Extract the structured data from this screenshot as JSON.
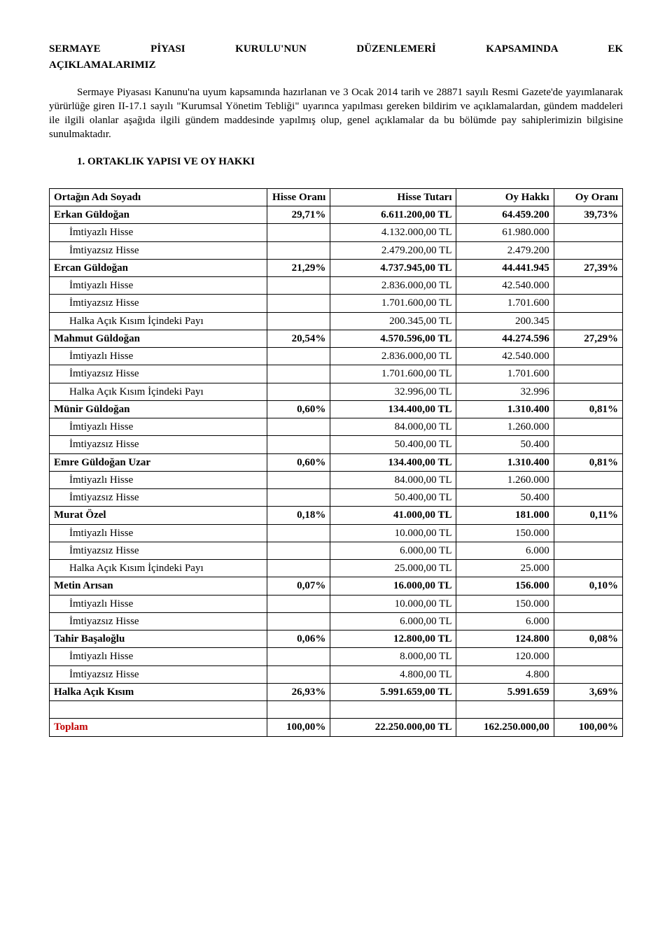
{
  "title_line1": "SERMAYE PİYASI KURULU'NUN DÜZENLEMERİ KAPSAMINDA EK",
  "title_line2": "AÇIKLAMALARIMIZ",
  "paragraph": "Sermaye Piyasası Kanunu'na uyum kapsamında hazırlanan ve 3 Ocak 2014 tarih ve 28871 sayılı Resmi Gazete'de yayımlanarak yürürlüğe giren II-17.1 sayılı \"Kurumsal Yönetim Tebliği\" uyarınca yapılması gereken bildirim ve açıklamalardan, gündem maddeleri ile ilgili olanlar aşağıda ilgili gündem maddesinde yapılmış olup, genel açıklamalar da bu bölümde pay sahiplerimizin bilgisine sunulmaktadır.",
  "section_heading": "1. ORTAKLIK YAPISI VE OY HAKKI",
  "columns": {
    "name": "Ortağın Adı Soyadı",
    "pct": "Hisse Oranı",
    "amt": "Hisse Tutarı",
    "hak": "Oy Hakkı",
    "oy": "Oy Oranı"
  },
  "rows": [
    {
      "type": "main",
      "name": "Erkan Güldoğan",
      "pct": "29,71%",
      "amt": "6.611.200,00 TL",
      "hak": "64.459.200",
      "oy": "39,73%"
    },
    {
      "type": "sub",
      "name": "İmtiyazlı Hisse",
      "pct": "",
      "amt": "4.132.000,00 TL",
      "hak": "61.980.000",
      "oy": ""
    },
    {
      "type": "sub",
      "name": "İmtiyazsız Hisse",
      "pct": "",
      "amt": "2.479.200,00 TL",
      "hak": "2.479.200",
      "oy": ""
    },
    {
      "type": "main",
      "name": "Ercan Güldoğan",
      "pct": "21,29%",
      "amt": "4.737.945,00 TL",
      "hak": "44.441.945",
      "oy": "27,39%"
    },
    {
      "type": "sub",
      "name": "İmtiyazlı Hisse",
      "pct": "",
      "amt": "2.836.000,00 TL",
      "hak": "42.540.000",
      "oy": ""
    },
    {
      "type": "sub",
      "name": "İmtiyazsız Hisse",
      "pct": "",
      "amt": "1.701.600,00 TL",
      "hak": "1.701.600",
      "oy": ""
    },
    {
      "type": "sub",
      "name": "Halka Açık Kısım İçindeki Payı",
      "pct": "",
      "amt": "200.345,00 TL",
      "hak": "200.345",
      "oy": ""
    },
    {
      "type": "main",
      "name": "Mahmut Güldoğan",
      "pct": "20,54%",
      "amt": "4.570.596,00 TL",
      "hak": "44.274.596",
      "oy": "27,29%"
    },
    {
      "type": "sub",
      "name": "İmtiyazlı Hisse",
      "pct": "",
      "amt": "2.836.000,00 TL",
      "hak": "42.540.000",
      "oy": ""
    },
    {
      "type": "sub",
      "name": "İmtiyazsız Hisse",
      "pct": "",
      "amt": "1.701.600,00 TL",
      "hak": "1.701.600",
      "oy": ""
    },
    {
      "type": "sub",
      "name": "Halka Açık Kısım İçindeki Payı",
      "pct": "",
      "amt": "32.996,00 TL",
      "hak": "32.996",
      "oy": ""
    },
    {
      "type": "main",
      "name": "Münir Güldoğan",
      "pct": "0,60%",
      "amt": "134.400,00 TL",
      "hak": "1.310.400",
      "oy": "0,81%"
    },
    {
      "type": "sub",
      "name": "İmtiyazlı Hisse",
      "pct": "",
      "amt": "84.000,00 TL",
      "hak": "1.260.000",
      "oy": ""
    },
    {
      "type": "sub",
      "name": "İmtiyazsız Hisse",
      "pct": "",
      "amt": "50.400,00 TL",
      "hak": "50.400",
      "oy": ""
    },
    {
      "type": "main",
      "name": "Emre Güldoğan Uzar",
      "pct": "0,60%",
      "amt": "134.400,00 TL",
      "hak": "1.310.400",
      "oy": "0,81%"
    },
    {
      "type": "sub",
      "name": "İmtiyazlı Hisse",
      "pct": "",
      "amt": "84.000,00 TL",
      "hak": "1.260.000",
      "oy": ""
    },
    {
      "type": "sub",
      "name": "İmtiyazsız Hisse",
      "pct": "",
      "amt": "50.400,00 TL",
      "hak": "50.400",
      "oy": ""
    },
    {
      "type": "main",
      "name": "Murat Özel",
      "pct": "0,18%",
      "amt": "41.000,00 TL",
      "hak": "181.000",
      "oy": "0,11%"
    },
    {
      "type": "sub",
      "name": "İmtiyazlı Hisse",
      "pct": "",
      "amt": "10.000,00 TL",
      "hak": "150.000",
      "oy": ""
    },
    {
      "type": "sub",
      "name": "İmtiyazsız Hisse",
      "pct": "",
      "amt": "6.000,00 TL",
      "hak": "6.000",
      "oy": ""
    },
    {
      "type": "sub",
      "name": "Halka Açık Kısım İçindeki Payı",
      "pct": "",
      "amt": "25.000,00 TL",
      "hak": "25.000",
      "oy": ""
    },
    {
      "type": "main",
      "name": "Metin Arısan",
      "pct": "0,07%",
      "amt": "16.000,00 TL",
      "hak": "156.000",
      "oy": "0,10%"
    },
    {
      "type": "sub",
      "name": "İmtiyazlı Hisse",
      "pct": "",
      "amt": "10.000,00 TL",
      "hak": "150.000",
      "oy": ""
    },
    {
      "type": "sub",
      "name": "İmtiyazsız Hisse",
      "pct": "",
      "amt": "6.000,00 TL",
      "hak": "6.000",
      "oy": ""
    },
    {
      "type": "main",
      "name": "Tahir Başaloğlu",
      "pct": "0,06%",
      "amt": "12.800,00 TL",
      "hak": "124.800",
      "oy": "0,08%"
    },
    {
      "type": "sub",
      "name": "İmtiyazlı Hisse",
      "pct": "",
      "amt": "8.000,00 TL",
      "hak": "120.000",
      "oy": ""
    },
    {
      "type": "sub",
      "name": "İmtiyazsız Hisse",
      "pct": "",
      "amt": "4.800,00 TL",
      "hak": "4.800",
      "oy": ""
    },
    {
      "type": "main",
      "name": "Halka Açık Kısım",
      "pct": "26,93%",
      "amt": "5.991.659,00 TL",
      "hak": "5.991.659",
      "oy": "3,69%"
    },
    {
      "type": "spacer",
      "name": "",
      "pct": "",
      "amt": "",
      "hak": "",
      "oy": ""
    },
    {
      "type": "total",
      "name": "Toplam",
      "pct": "100,00%",
      "amt": "22.250.000,00 TL",
      "hak": "162.250.000,00",
      "oy": "100,00%"
    }
  ]
}
